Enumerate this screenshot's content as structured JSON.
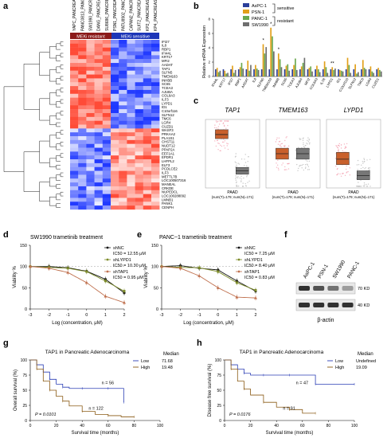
{
  "panels": {
    "a": {
      "letter": "a",
      "cell_lines": [
        "YAPC_PANCREAS",
        "PANC0813_PANCREAS",
        "SW1990_PANCREAS",
        "DANG_PANCREAS",
        "SU8686_PANCREAS",
        "PSN1_PANCREAS",
        "PATU8902_PANCREAS",
        "CAPAN2_PANCREAS",
        "SUIT2_PANCREAS",
        "KP2_PANCREAS",
        "KP4_PANCREAS"
      ],
      "group_resistant": "MEKi resistant",
      "group_sensitive": "MEKi sensitive",
      "genes_top": [
        "IFI27",
        "IL8",
        "RBP1",
        "IFI44L",
        "KRT17",
        "MFI2",
        "AADAT",
        "TAP1",
        "SLFN5",
        "TMEM163",
        "INHBB",
        "SC65",
        "TCEA3",
        "AJUBA",
        "COL9A3",
        "ILF3",
        "LYPD1",
        "ID1",
        "C10orf116",
        "SLFN12",
        "TMC6",
        "LGR4",
        "CUZD1"
      ],
      "genes_bottom": [
        "WASF3",
        "PRKAA2",
        "PLA1S1",
        "CHST11",
        "NUDT12",
        "PPAP2A",
        "EEF1A1",
        "EPDR1",
        "LHFPL2",
        "ELF3",
        "PCDLCE2",
        "ILF3",
        "METTL7B",
        "LOC100507316",
        "MANEAL",
        "CRKDE",
        "NUPEDCL",
        "LOC100288092",
        "LMNB1",
        "PANK1",
        "CENPH"
      ]
    },
    "b": {
      "letter": "b",
      "legend": [
        "AsPC-1",
        "PSN-1",
        "PANC-1",
        "SW1990"
      ],
      "sensitive_label": "sensitive",
      "resistant_label": "resistant",
      "ylabel": "Relative mRNA Expression",
      "stars": [
        "*",
        "*",
        "*",
        "**"
      ],
      "colors": [
        "#2b3f9a",
        "#e2a019",
        "#6aa84f",
        "#6f6f6f"
      ]
    },
    "c": {
      "letter": "c",
      "plots": [
        {
          "gene": "TAP1",
          "x_label": "PAAD",
          "n_label": "(num(T)=179; num(N)=171)"
        },
        {
          "gene": "TMEM163",
          "x_label": "PAAD",
          "n_label": "(num(T)=179; num(N)=171)"
        },
        {
          "gene": "LYPD1",
          "x_label": "PAAD",
          "n_label": "(num(T)=179; num(N)=171)"
        }
      ],
      "tumor_color": "#c9602c",
      "normal_color": "#777777"
    },
    "d": {
      "letter": "d",
      "title": "SW1990 trametinib treatment",
      "ylabel": "Viability %",
      "xlabel": "Log (concentration, μM)",
      "legend": [
        {
          "name": "shNC",
          "ic50": "IC50 = 12.55 μM",
          "color": "#111111"
        },
        {
          "name": "shLYPD1",
          "ic50": "IC50 = 10.30 μM",
          "color": "#7d8c2a"
        },
        {
          "name": "shTAP1",
          "ic50": "IC50 = 0.95 μM",
          "color": "#c0714f"
        }
      ]
    },
    "e": {
      "letter": "e",
      "title": "PANC−1 trametinib treatment",
      "ylabel": "Viability %",
      "xlabel": "Log (concentration, μM)",
      "legend": [
        {
          "name": "shNC",
          "ic50": "IC50 = 7.25 μM",
          "color": "#111111"
        },
        {
          "name": "shLYPD1",
          "ic50": "IC50 = 8.40 μM",
          "color": "#7d8c2a"
        },
        {
          "name": "shTAP1",
          "ic50": "IC50 = 0.83 μM",
          "color": "#c0714f"
        }
      ]
    },
    "f": {
      "letter": "f",
      "lanes": [
        "AsPC-1",
        "PSN-1",
        "SW1990",
        "PANC-1"
      ],
      "bands": [
        {
          "name": "TAP1",
          "kda": "70 KD"
        },
        {
          "name": "β-actin",
          "kda": "40 KD"
        }
      ]
    },
    "g": {
      "letter": "g",
      "title": "TAP1 in Pancreatic Adenocarcinoma",
      "ylabel": "Overall survival (%)",
      "xlabel": "Survival time (months)",
      "median_header": "Median",
      "legend": [
        {
          "name": "Low",
          "median": "71.68",
          "color": "#2b3fb5"
        },
        {
          "name": "High",
          "median": "19.48",
          "color": "#8a5a14"
        }
      ],
      "n_low": "n = 56",
      "n_high": "n = 122",
      "p": "P = 0.0101"
    },
    "h": {
      "letter": "h",
      "title": "TAP1 in Pancreatic Adenocarcinoma",
      "ylabel": "Disease free survival (%)",
      "xlabel": "Survival time (months)",
      "median_header": "Median",
      "legend": [
        {
          "name": "Low",
          "median": "Undefined",
          "color": "#2b3fb5"
        },
        {
          "name": "High",
          "median": "19.09",
          "color": "#8a5a14"
        }
      ],
      "n_low": "n = 47",
      "n_high": "n = 91",
      "p": "P = 0.0176"
    }
  },
  "chart_data": [
    {
      "type": "bar",
      "panel": "b",
      "ylabel": "Relative mRNA Expression",
      "categories": [
        "IFI44L",
        "KRT17",
        "IFI27",
        "RBP1",
        "AADAT",
        "IL8",
        "SLFN5",
        "TMEM163",
        "INHBB",
        "SC65",
        "TCEA3",
        "AJUBA",
        "MFI2",
        "COL9A3",
        "IL7R",
        "LYPD1",
        "ID1",
        "C10orf116",
        "SLFN12",
        "TMC6",
        "LGR4",
        "CUZD1"
      ],
      "series": [
        {
          "name": "AsPC-1",
          "values": [
            1,
            1,
            1,
            1,
            1,
            1,
            1,
            1,
            1,
            1,
            1,
            1,
            1,
            1,
            1,
            1,
            1,
            1,
            1,
            1,
            1,
            1
          ]
        },
        {
          "name": "PSN-1",
          "values": [
            1.2,
            0.8,
            1.5,
            1.3,
            2.2,
            1.6,
            4.5,
            6.8,
            3.2,
            1.5,
            1.6,
            1.4,
            1.2,
            1.5,
            2.1,
            1.3,
            0.9,
            2.6,
            1.7,
            2.3,
            1.4,
            1.2
          ]
        },
        {
          "name": "PANC-1",
          "values": [
            0.6,
            0.4,
            0.5,
            1.9,
            0.8,
            1.1,
            3.2,
            5.6,
            2.4,
            1.7,
            2.5,
            1.9,
            1.4,
            1.0,
            1.3,
            0.9,
            0.8,
            1.6,
            0.4,
            1.2,
            0.7,
            0.9
          ]
        },
        {
          "name": "SW1990",
          "values": [
            0.8,
            0.5,
            0.9,
            1.1,
            1.6,
            0.9,
            4.1,
            3.5,
            1.3,
            0.8,
            0.9,
            2.6,
            0.7,
            0.6,
            0.5,
            1.1,
            0.7,
            0.5,
            0.6,
            1.0,
            0.5,
            0.7
          ]
        }
      ],
      "ylim": [
        0,
        8
      ]
    },
    {
      "type": "line",
      "panel": "d",
      "title": "SW1990 trametinib treatment",
      "xlabel": "Log (concentration, μM)",
      "ylabel": "Viability %",
      "x": [
        -3,
        -2,
        -1,
        0,
        1,
        2
      ],
      "ylim": [
        0,
        150
      ],
      "series": [
        {
          "name": "shNC",
          "values": [
            100,
            100,
            97,
            89,
            70,
            38
          ]
        },
        {
          "name": "shLYPD1",
          "values": [
            100,
            98,
            96,
            88,
            66,
            42
          ]
        },
        {
          "name": "shTAP1",
          "values": [
            100,
            96,
            86,
            62,
            30,
            15
          ]
        }
      ]
    },
    {
      "type": "line",
      "panel": "e",
      "title": "PANC−1 trametinib treatment",
      "xlabel": "Log (concentration, μM)",
      "ylabel": "Viability %",
      "x": [
        -3,
        -2,
        -1,
        0,
        1,
        2
      ],
      "ylim": [
        0,
        150
      ],
      "series": [
        {
          "name": "shNC",
          "values": [
            100,
            102,
            96,
            92,
            66,
            42
          ]
        },
        {
          "name": "shLYPD1",
          "values": [
            100,
            98,
            97,
            88,
            62,
            44
          ]
        },
        {
          "name": "shTAP1",
          "values": [
            100,
            96,
            78,
            50,
            28,
            26
          ]
        }
      ]
    },
    {
      "type": "line",
      "panel": "g",
      "title": "TAP1 in Pancreatic Adenocarcinoma",
      "xlabel": "Survival time (months)",
      "ylabel": "Overall survival (%)",
      "xlim": [
        0,
        100
      ],
      "ylim": [
        0,
        100
      ],
      "series": [
        {
          "name": "Low",
          "x": [
            0,
            5,
            10,
            15,
            20,
            25,
            30,
            40,
            50,
            60,
            70,
            72
          ],
          "values": [
            100,
            92,
            80,
            68,
            60,
            55,
            53,
            53,
            53,
            53,
            53,
            30
          ]
        },
        {
          "name": "High",
          "x": [
            0,
            5,
            10,
            15,
            20,
            25,
            30,
            40,
            50,
            60,
            70,
            80
          ],
          "values": [
            100,
            85,
            65,
            50,
            40,
            32,
            24,
            15,
            10,
            8,
            6,
            6
          ]
        }
      ]
    },
    {
      "type": "line",
      "panel": "h",
      "title": "TAP1 in Pancreatic Adenocarcinoma",
      "xlabel": "Survival time (months)",
      "ylabel": "Disease free survival (%)",
      "xlim": [
        0,
        100
      ],
      "ylim": [
        0,
        100
      ],
      "series": [
        {
          "name": "Low",
          "x": [
            0,
            5,
            10,
            15,
            20,
            30,
            40,
            50,
            60,
            70,
            80,
            100
          ],
          "values": [
            100,
            92,
            85,
            78,
            75,
            75,
            75,
            75,
            75,
            60,
            60,
            60
          ]
        },
        {
          "name": "High",
          "x": [
            0,
            5,
            10,
            15,
            20,
            30,
            40,
            50,
            60,
            70
          ],
          "values": [
            100,
            85,
            65,
            52,
            42,
            30,
            22,
            18,
            12,
            12
          ]
        }
      ]
    }
  ]
}
